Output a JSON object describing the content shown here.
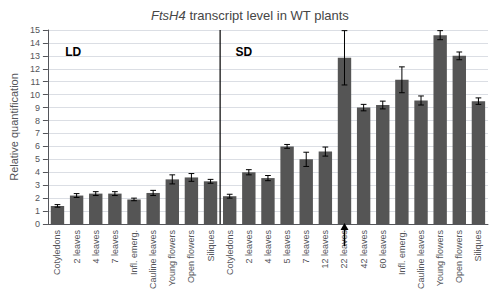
{
  "chart_data": {
    "type": "bar",
    "title": "FtsH4 transcript level in WT plants",
    "ylabel": "Relative quantification",
    "categories": [
      "Cotyledons",
      "2 leaves",
      "4 leaves",
      "7 leaves",
      "Infl. emerg.",
      "Cauline leaves",
      "Young flowers",
      "Open flowers",
      "Siliques",
      "Cotyledons",
      "2 leaves",
      "4 leaves",
      "5 leaves",
      "7 leaves",
      "12 leaves",
      "22 leaves",
      "42 leaves",
      "60 leaves",
      "Infl. emerg.",
      "Cauline leaves",
      "Young flowers",
      "Open flowers",
      "Siliques"
    ],
    "values": [
      1.4,
      2.2,
      2.35,
      2.35,
      1.9,
      2.4,
      3.45,
      3.6,
      3.3,
      2.15,
      4.0,
      3.55,
      6.0,
      5.0,
      5.6,
      12.85,
      9.0,
      9.2,
      11.15,
      9.55,
      14.6,
      13.0,
      9.5
    ],
    "errors": [
      0.1,
      0.15,
      0.15,
      0.15,
      0.1,
      0.2,
      0.35,
      0.3,
      0.15,
      0.15,
      0.2,
      0.2,
      0.15,
      0.55,
      0.35,
      2.1,
      0.25,
      0.3,
      1.0,
      0.35,
      0.35,
      0.3,
      0.25
    ],
    "color": "#555555",
    "ylim": [
      0,
      15
    ],
    "yticks": [
      0,
      1,
      2,
      3,
      4,
      5,
      6,
      7,
      8,
      9,
      10,
      11,
      12,
      13,
      14,
      15
    ],
    "grid": true,
    "annotations": [
      {
        "text": "LD",
        "x": 0.4,
        "y": 13.8
      },
      {
        "text": "SD",
        "x": 9.3,
        "y": 13.8
      },
      {
        "type": "line",
        "x": 8.5
      },
      {
        "type": "arrow",
        "x": 15
      }
    ]
  }
}
